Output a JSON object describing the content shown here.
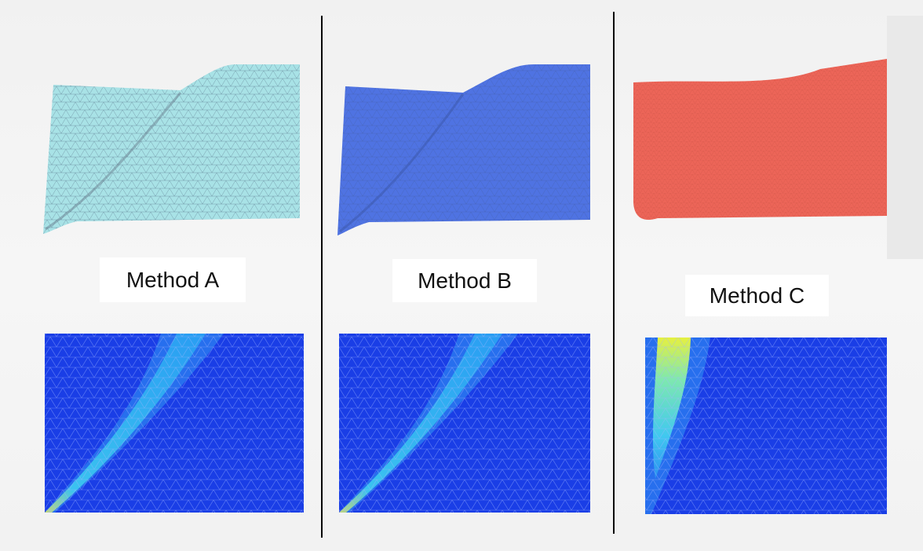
{
  "panels": [
    {
      "label": "Method A"
    },
    {
      "label": "Method B"
    },
    {
      "label": "Method C"
    }
  ]
}
